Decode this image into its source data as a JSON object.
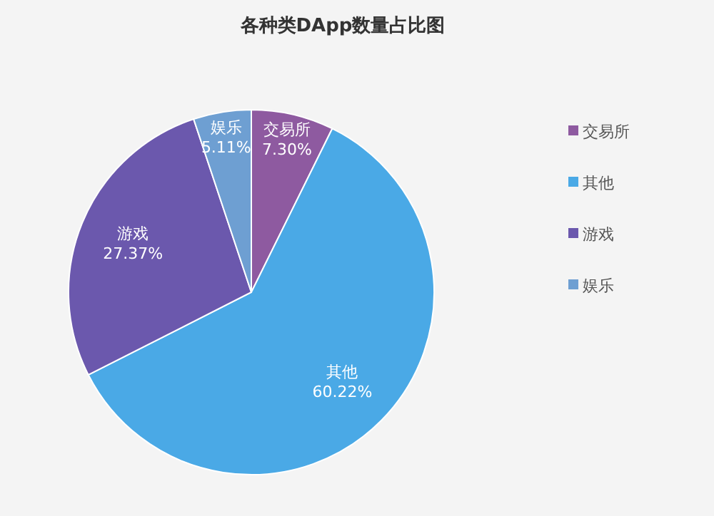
{
  "chart_data": {
    "type": "pie",
    "title": "各种类DApp数量占比图",
    "categories": [
      "交易所",
      "其他",
      "游戏",
      "娱乐"
    ],
    "values": [
      7.3,
      60.22,
      27.37,
      5.11
    ],
    "colors": [
      "#8e5aa0",
      "#4aa9e6",
      "#6b58ad",
      "#6e9fd2"
    ],
    "value_labels": [
      "7.30%",
      "60.22%",
      "27.37%",
      "5.11%"
    ],
    "legend": "right"
  }
}
